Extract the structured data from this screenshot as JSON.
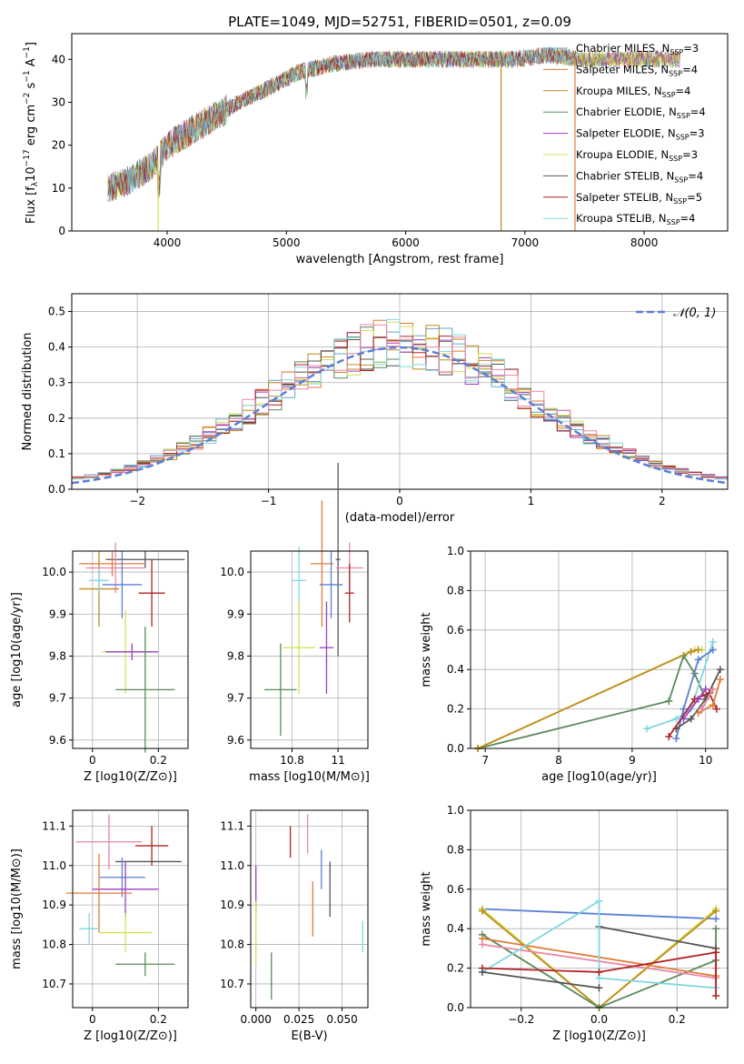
{
  "figure": {
    "title": "PLATE=1049, MJD=52751, FIBERID=0501, z=0.09"
  },
  "colors": {
    "Chabrier MILES": "#5fa8c8",
    "Salpeter MILES": "#e07b39",
    "Kroupa MILES": "#c08a1e",
    "Chabrier ELODIE": "#5a8a5a",
    "Salpeter ELODIE": "#9b3fbf",
    "Kroupa ELODIE": "#d4e157",
    "Chabrier STELIB": "#555555",
    "Salpeter STELIB": "#b22222",
    "Kroupa STELIB": "#7fd7e0",
    "extra_pink": "#e887a8",
    "extra_blue": "#5b7fd6"
  },
  "chart_data": [
    {
      "type": "line",
      "title": "PLATE=1049, MJD=52751, FIBERID=0501, z=0.09",
      "xlabel": "wavelength [Angstrom, rest frame]",
      "ylabel": "Flux [f_λ10^-17 erg cm^-2 s^-1 A^-1]",
      "xlim": [
        3200,
        8700
      ],
      "ylim": [
        0,
        46
      ],
      "xticks": [
        4000,
        5000,
        6000,
        7000,
        8000
      ],
      "yticks": [
        0,
        10,
        20,
        30,
        40
      ],
      "grid": false,
      "legend_position": "right",
      "spectrum_shape": {
        "x": [
          3500,
          3700,
          3900,
          4000,
          4300,
          4600,
          4900,
          5100,
          5400,
          5700,
          6000,
          6300,
          6600,
          6900,
          7200,
          7500,
          7800,
          8000,
          8300
        ],
        "y": [
          10,
          12,
          16,
          20,
          25,
          30,
          34,
          37,
          39,
          40,
          40,
          40,
          40,
          40,
          41,
          40,
          40,
          40,
          40
        ]
      },
      "spikes": [
        {
          "x": 3925,
          "y": 0,
          "series": "Kroupa ELODIE"
        },
        {
          "x": 6800,
          "y": 0,
          "series": "Kroupa MILES"
        },
        {
          "x": 7420,
          "y": 0,
          "series": "Salpeter MILES"
        }
      ],
      "legend": [
        {
          "series": "Chabrier MILES",
          "label": "Chabrier MILES, N",
          "sub": "SSP",
          "suffix": "=3"
        },
        {
          "series": "Salpeter MILES",
          "label": "Salpeter MILES, N",
          "sub": "SSP",
          "suffix": "=4"
        },
        {
          "series": "Kroupa MILES",
          "label": "Kroupa MILES, N",
          "sub": "SSP",
          "suffix": "=4"
        },
        {
          "series": "Chabrier ELODIE",
          "label": "Chabrier ELODIE, N",
          "sub": "SSP",
          "suffix": "=4"
        },
        {
          "series": "Salpeter ELODIE",
          "label": "Salpeter ELODIE, N",
          "sub": "SSP",
          "suffix": "=3"
        },
        {
          "series": "Kroupa ELODIE",
          "label": "Kroupa ELODIE, N",
          "sub": "SSP",
          "suffix": "=3"
        },
        {
          "series": "Chabrier STELIB",
          "label": "Chabrier STELIB, N",
          "sub": "SSP",
          "suffix": "=4"
        },
        {
          "series": "Salpeter STELIB",
          "label": "Salpeter STELIB, N",
          "sub": "SSP",
          "suffix": "=5"
        },
        {
          "series": "Kroupa STELIB",
          "label": "Kroupa STELIB, N",
          "sub": "SSP",
          "suffix": "=4"
        }
      ]
    },
    {
      "type": "histogram",
      "xlabel": "(data-model)/error",
      "ylabel": "Normed distribution",
      "xlim": [
        -2.5,
        2.5
      ],
      "ylim": [
        0,
        0.55
      ],
      "xticks": [
        -2,
        -1,
        0,
        1,
        2
      ],
      "xtick_labels": [
        "−2",
        "−1",
        "0",
        "1",
        "2"
      ],
      "yticks": [
        0.0,
        0.1,
        0.2,
        0.3,
        0.4,
        0.5
      ],
      "grid": true,
      "legend_position": "top-right",
      "reference": {
        "label": "𝒩(0, 1)",
        "color": "#5b7fd6"
      },
      "bin_width": 0.1,
      "series_order": [
        "Chabrier MILES",
        "Salpeter MILES",
        "Kroupa MILES",
        "Chabrier ELODIE",
        "Salpeter ELODIE",
        "Kroupa ELODIE",
        "Chabrier STELIB",
        "Salpeter STELIB",
        "Kroupa STELIB",
        "extra_pink"
      ]
    },
    {
      "type": "errorbar",
      "xlabel": "Z [log10(Z/Z⊙)]",
      "ylabel": "age [log10(age/yr)]",
      "xlim": [
        -0.06,
        0.29
      ],
      "ylim": [
        9.58,
        10.05
      ],
      "xticks": [
        0.0,
        0.2
      ],
      "yticks": [
        9.6,
        9.7,
        9.8,
        9.9,
        10.0
      ],
      "grid": true,
      "points": [
        {
          "series": "Chabrier STELIB",
          "x": 0.16,
          "y": 10.03,
          "xerr": 0.12,
          "yerr": 0.02
        },
        {
          "series": "Salpeter MILES",
          "x": 0.06,
          "y": 10.02,
          "xerr": 0.1,
          "yerr": 0.03
        },
        {
          "series": "extra_pink",
          "x": 0.07,
          "y": 10.01,
          "xerr": 0.09,
          "yerr": 0.06
        },
        {
          "series": "Kroupa MILES",
          "x": 0.02,
          "y": 9.96,
          "xerr": 0.06,
          "yerr": 0.09
        },
        {
          "series": "extra_blue",
          "x": 0.09,
          "y": 9.97,
          "xerr": 0.06,
          "yerr": 0.08
        },
        {
          "series": "Kroupa STELIB",
          "x": 0.02,
          "y": 9.98,
          "xerr": 0.03,
          "yerr": 0.03
        },
        {
          "series": "Salpeter STELIB",
          "x": 0.18,
          "y": 9.95,
          "xerr": 0.04,
          "yerr": 0.08
        },
        {
          "series": "Kroupa ELODIE",
          "x": 0.1,
          "y": 9.81,
          "xerr": 0.07,
          "yerr": 0.1
        },
        {
          "series": "Salpeter ELODIE",
          "x": 0.12,
          "y": 9.81,
          "xerr": 0.08,
          "yerr": 0.02
        },
        {
          "series": "Chabrier ELODIE",
          "x": 0.16,
          "y": 9.72,
          "xerr": 0.09,
          "yerr": 0.15
        }
      ]
    },
    {
      "type": "errorbar",
      "xlabel": "mass [log10(M/M⊙)]",
      "ylabel": "",
      "xlim": [
        10.62,
        11.13
      ],
      "ylim": [
        9.58,
        10.05
      ],
      "xticks": [
        10.8,
        11.0
      ],
      "yticks": [
        9.6,
        9.7,
        9.8,
        9.9,
        10.0
      ],
      "grid": true,
      "points": [
        {
          "series": "Chabrier STELIB",
          "x": 11.0,
          "y": 10.03,
          "xerr": 0.01,
          "yerr": 0.23
        },
        {
          "series": "Salpeter MILES",
          "x": 10.93,
          "y": 10.02,
          "xerr": 0.05,
          "yerr": 0.15
        },
        {
          "series": "extra_pink",
          "x": 11.05,
          "y": 10.01,
          "xerr": 0.06,
          "yerr": 0.06
        },
        {
          "series": "extra_blue",
          "x": 10.97,
          "y": 9.97,
          "xerr": 0.05,
          "yerr": 0.08
        },
        {
          "series": "Kroupa STELIB",
          "x": 10.83,
          "y": 9.98,
          "xerr": 0.03,
          "yerr": 0.08
        },
        {
          "series": "Salpeter STELIB",
          "x": 11.05,
          "y": 9.95,
          "xerr": 0.02,
          "yerr": 0.07
        },
        {
          "series": "Kroupa ELODIE",
          "x": 10.83,
          "y": 9.82,
          "xerr": 0.07,
          "yerr": 0.11
        },
        {
          "series": "Salpeter ELODIE",
          "x": 10.95,
          "y": 9.82,
          "xerr": 0.03,
          "yerr": 0.11
        },
        {
          "series": "Chabrier ELODIE",
          "x": 10.75,
          "y": 9.72,
          "xerr": 0.07,
          "yerr": 0.11
        }
      ]
    },
    {
      "type": "line",
      "xlabel": "age [log10(age/yr)]",
      "ylabel": "mass weight",
      "xlim": [
        6.8,
        10.3
      ],
      "ylim": [
        0,
        1
      ],
      "xticks": [
        7,
        8,
        9,
        10
      ],
      "yticks": [
        0.0,
        0.2,
        0.4,
        0.6,
        0.8,
        1.0
      ],
      "grid": true,
      "series": [
        {
          "name": "Chabrier ELODIE",
          "x": [
            6.9,
            9.5,
            9.7,
            9.85,
            10.0
          ],
          "y": [
            0.0,
            0.24,
            0.47,
            0.38,
            0.25
          ]
        },
        {
          "name": "Kroupa ELODIE",
          "x": [
            6.9,
            9.85,
            9.95
          ],
          "y": [
            0.0,
            0.5,
            0.5
          ]
        },
        {
          "name": "Kroupa MILES",
          "x": [
            6.9,
            9.8,
            9.9
          ],
          "y": [
            0.0,
            0.49,
            0.5
          ]
        },
        {
          "name": "Kroupa STELIB",
          "x": [
            9.2,
            9.6,
            9.8,
            10.1
          ],
          "y": [
            0.1,
            0.15,
            0.2,
            0.54
          ]
        },
        {
          "name": "extra_blue",
          "x": [
            9.6,
            9.7,
            9.9,
            10.1
          ],
          "y": [
            0.05,
            0.2,
            0.45,
            0.5
          ]
        },
        {
          "name": "Chabrier STELIB",
          "x": [
            9.6,
            9.8,
            10.0,
            10.2
          ],
          "y": [
            0.1,
            0.15,
            0.25,
            0.4
          ]
        },
        {
          "name": "Salpeter STELIB",
          "x": [
            9.5,
            9.85,
            10.05,
            10.15
          ],
          "y": [
            0.06,
            0.25,
            0.28,
            0.2
          ]
        },
        {
          "name": "Salpeter MILES",
          "x": [
            9.9,
            10.1,
            10.2
          ],
          "y": [
            0.18,
            0.22,
            0.35
          ]
        },
        {
          "name": "extra_pink",
          "x": [
            9.95,
            10.1
          ],
          "y": [
            0.2,
            0.3
          ]
        },
        {
          "name": "Salpeter ELODIE",
          "x": [
            9.7,
            9.9,
            10.0
          ],
          "y": [
            0.15,
            0.25,
            0.3
          ]
        }
      ]
    },
    {
      "type": "errorbar",
      "xlabel": "Z [log10(Z/Z⊙)]",
      "ylabel": "mass [log10(M/M⊙)]",
      "xlim": [
        -0.06,
        0.29
      ],
      "ylim": [
        10.64,
        11.14
      ],
      "xticks": [
        0.0,
        0.2
      ],
      "yticks": [
        10.7,
        10.8,
        10.9,
        11.0,
        11.1
      ],
      "grid": true,
      "points": [
        {
          "series": "extra_pink",
          "x": 0.05,
          "y": 11.06,
          "xerr": 0.1,
          "yerr": 0.07
        },
        {
          "series": "Salpeter STELIB",
          "x": 0.18,
          "y": 11.05,
          "xerr": 0.05,
          "yerr": 0.05
        },
        {
          "series": "Chabrier STELIB",
          "x": 0.17,
          "y": 11.01,
          "xerr": 0.1,
          "yerr": 0.0
        },
        {
          "series": "extra_blue",
          "x": 0.09,
          "y": 10.97,
          "xerr": 0.07,
          "yerr": 0.05
        },
        {
          "series": "Salpeter ELODIE",
          "x": 0.1,
          "y": 10.94,
          "xerr": 0.1,
          "yerr": 0.07
        },
        {
          "series": "Salpeter MILES",
          "x": 0.02,
          "y": 10.93,
          "xerr": 0.1,
          "yerr": 0.1
        },
        {
          "series": "Kroupa STELIB",
          "x": -0.01,
          "y": 10.84,
          "xerr": 0.03,
          "yerr": 0.04
        },
        {
          "series": "Kroupa ELODIE",
          "x": 0.1,
          "y": 10.83,
          "xerr": 0.08,
          "yerr": 0.05
        },
        {
          "series": "Chabrier ELODIE",
          "x": 0.16,
          "y": 10.75,
          "xerr": 0.09,
          "yerr": 0.03
        }
      ]
    },
    {
      "type": "errorbar",
      "xlabel": "E(B-V)",
      "ylabel": "",
      "xlim": [
        -0.003,
        0.065
      ],
      "ylim": [
        10.64,
        11.14
      ],
      "xticks": [
        0.0,
        0.025,
        0.05
      ],
      "xtick_labels": [
        "0.000",
        "0.025",
        "0.050"
      ],
      "yticks": [
        10.7,
        10.8,
        10.9,
        11.0,
        11.1
      ],
      "grid": true,
      "points": [
        {
          "series": "Salpeter STELIB",
          "x": 0.02,
          "y": 11.06,
          "xerr": 0.0,
          "yerr": 0.04
        },
        {
          "series": "extra_pink",
          "x": 0.03,
          "y": 11.08,
          "xerr": 0.0,
          "yerr": 0.05
        },
        {
          "series": "Chabrier STELIB",
          "x": 0.043,
          "y": 10.94,
          "xerr": 0.0,
          "yerr": 0.07
        },
        {
          "series": "extra_blue",
          "x": 0.038,
          "y": 10.99,
          "xerr": 0.0,
          "yerr": 0.05
        },
        {
          "series": "Salpeter MILES",
          "x": 0.033,
          "y": 10.89,
          "xerr": 0.0,
          "yerr": 0.07
        },
        {
          "series": "Salpeter ELODIE",
          "x": 0.0,
          "y": 10.94,
          "xerr": 0.0,
          "yerr": 0.06
        },
        {
          "series": "Kroupa STELIB",
          "x": 0.062,
          "y": 10.82,
          "xerr": 0.0,
          "yerr": 0.04
        },
        {
          "series": "Kroupa ELODIE",
          "x": 0.0,
          "y": 10.83,
          "xerr": 0.0,
          "yerr": 0.08
        },
        {
          "series": "Chabrier ELODIE",
          "x": 0.009,
          "y": 10.72,
          "xerr": 0.0,
          "yerr": 0.06
        }
      ]
    },
    {
      "type": "line",
      "xlabel": "Z [log10(Z/Z⊙)]",
      "ylabel": "mass weight",
      "xlim": [
        -0.33,
        0.33
      ],
      "ylim": [
        0,
        1
      ],
      "xticks": [
        -0.2,
        0.0,
        0.2
      ],
      "xtick_labels": [
        "−0.2",
        "0.0",
        "0.2"
      ],
      "yticks": [
        0.0,
        0.2,
        0.4,
        0.6,
        0.8,
        1.0
      ],
      "grid": true,
      "series": [
        {
          "name": "extra_blue",
          "x": [
            -0.3,
            0.3
          ],
          "y": [
            0.5,
            0.45
          ]
        },
        {
          "name": "Kroupa ELODIE",
          "x": [
            -0.3,
            0.0,
            0.3
          ],
          "y": [
            0.5,
            0.0,
            0.5
          ]
        },
        {
          "name": "Kroupa MILES",
          "x": [
            -0.3,
            0.0,
            0.3
          ],
          "y": [
            0.49,
            0.0,
            0.49
          ]
        },
        {
          "name": "Chabrier ELODIE",
          "x": [
            -0.3,
            0.0,
            0.3,
            0.3
          ],
          "y": [
            0.37,
            0.0,
            0.24,
            0.4
          ]
        },
        {
          "name": "Salpeter MILES",
          "x": [
            -0.3,
            0.3,
            0.3
          ],
          "y": [
            0.35,
            0.16,
            0.3
          ]
        },
        {
          "name": "extra_pink",
          "x": [
            -0.3,
            0.3,
            0.3
          ],
          "y": [
            0.32,
            0.15,
            0.2
          ]
        },
        {
          "name": "Chabrier STELIB",
          "x": [
            0.0,
            0.3,
            0.3
          ],
          "y": [
            0.41,
            0.3,
            0.1
          ]
        },
        {
          "name": "Kroupa STELIB",
          "x": [
            -0.3,
            0.0,
            0.0,
            0.3
          ],
          "y": [
            0.18,
            0.54,
            0.15,
            0.1
          ]
        },
        {
          "name": "Salpeter STELIB",
          "x": [
            -0.3,
            0.0,
            0.3,
            0.3
          ],
          "y": [
            0.2,
            0.18,
            0.28,
            0.06
          ]
        },
        {
          "name": "Chabrier STELIB",
          "x": [
            -0.3,
            0.0
          ],
          "y": [
            0.18,
            0.1
          ]
        }
      ]
    }
  ]
}
